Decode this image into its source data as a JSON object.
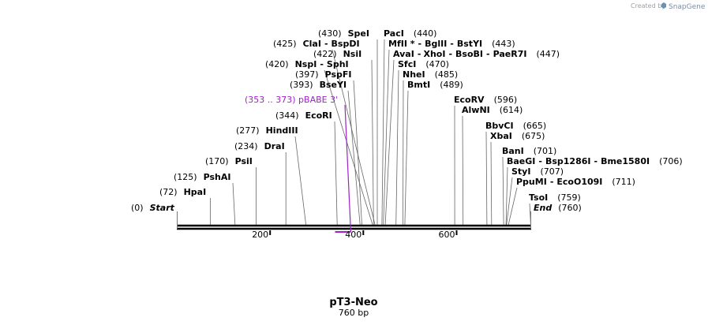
{
  "header": {
    "created_by": "Created by",
    "brand": "SnapGene",
    "brand_icon": "snapgene-logo-icon"
  },
  "map": {
    "name": "pT3-Neo",
    "length_label": "760 bp",
    "total_bp": 760,
    "colors": {
      "line": "#000000",
      "feature": "#a020c8",
      "tick": "#555555"
    },
    "ticks": [
      {
        "value": 200,
        "label": "200"
      },
      {
        "value": 400,
        "label": "400"
      },
      {
        "value": 600,
        "label": "600"
      }
    ],
    "start_label": {
      "pos": "(0)",
      "name": "Start"
    },
    "end_label": {
      "pos": "(760)",
      "name": "End"
    },
    "feature": {
      "label": "(353 .. 373)  pBABE 3'",
      "start": 353,
      "end": 373
    }
  },
  "sites": [
    {
      "pos": 72,
      "pos_text": "(72)",
      "names": [
        "HpaI"
      ]
    },
    {
      "pos": 125,
      "pos_text": "(125)",
      "names": [
        "PshAI"
      ]
    },
    {
      "pos": 170,
      "pos_text": "(170)",
      "names": [
        "PsiI"
      ]
    },
    {
      "pos": 234,
      "pos_text": "(234)",
      "names": [
        "DraI"
      ]
    },
    {
      "pos": 277,
      "pos_text": "(277)",
      "names": [
        "HindIII"
      ]
    },
    {
      "pos": 344,
      "pos_text": "(344)",
      "names": [
        "EcoRI"
      ]
    },
    {
      "pos": 393,
      "pos_text": "(393)",
      "names": [
        "BseYI"
      ]
    },
    {
      "pos": 397,
      "pos_text": "(397)",
      "names": [
        "PspFI"
      ]
    },
    {
      "pos": 420,
      "pos_text": "(420)",
      "names": [
        "NspI",
        "SphI"
      ]
    },
    {
      "pos": 422,
      "pos_text": "(422)",
      "names": [
        "NsiI"
      ]
    },
    {
      "pos": 425,
      "pos_text": "(425)",
      "names": [
        "ClaI",
        "BspDI"
      ]
    },
    {
      "pos": 430,
      "pos_text": "(430)",
      "names": [
        "SpeI"
      ]
    },
    {
      "pos": 440,
      "pos_text": "(440)",
      "names": [
        "PacI"
      ]
    },
    {
      "pos": 443,
      "pos_text": "(443)",
      "names": [
        "MfII *",
        "BglII",
        "BstYI"
      ]
    },
    {
      "pos": 447,
      "pos_text": "(447)",
      "names": [
        "AvaI",
        "XhoI",
        "BsoBI",
        "PaeR7I"
      ]
    },
    {
      "pos": 470,
      "pos_text": "(470)",
      "names": [
        "SfcI"
      ]
    },
    {
      "pos": 485,
      "pos_text": "(485)",
      "names": [
        "NheI"
      ]
    },
    {
      "pos": 489,
      "pos_text": "(489)",
      "names": [
        "BmtI"
      ]
    },
    {
      "pos": 596,
      "pos_text": "(596)",
      "names": [
        "EcoRV"
      ]
    },
    {
      "pos": 614,
      "pos_text": "(614)",
      "names": [
        "AlwNI"
      ]
    },
    {
      "pos": 665,
      "pos_text": "(665)",
      "names": [
        "BbvCI"
      ]
    },
    {
      "pos": 675,
      "pos_text": "(675)",
      "names": [
        "XbaI"
      ]
    },
    {
      "pos": 701,
      "pos_text": "(701)",
      "names": [
        "BanI"
      ]
    },
    {
      "pos": 706,
      "pos_text": "(706)",
      "names": [
        "BaeGI",
        "Bsp1286I",
        "Bme1580I"
      ]
    },
    {
      "pos": 707,
      "pos_text": "(707)",
      "names": [
        "StyI"
      ]
    },
    {
      "pos": 711,
      "pos_text": "(711)",
      "names": [
        "PpuMI",
        "EcoO109I"
      ]
    },
    {
      "pos": 759,
      "pos_text": "(759)",
      "names": [
        "TsoI"
      ]
    }
  ]
}
